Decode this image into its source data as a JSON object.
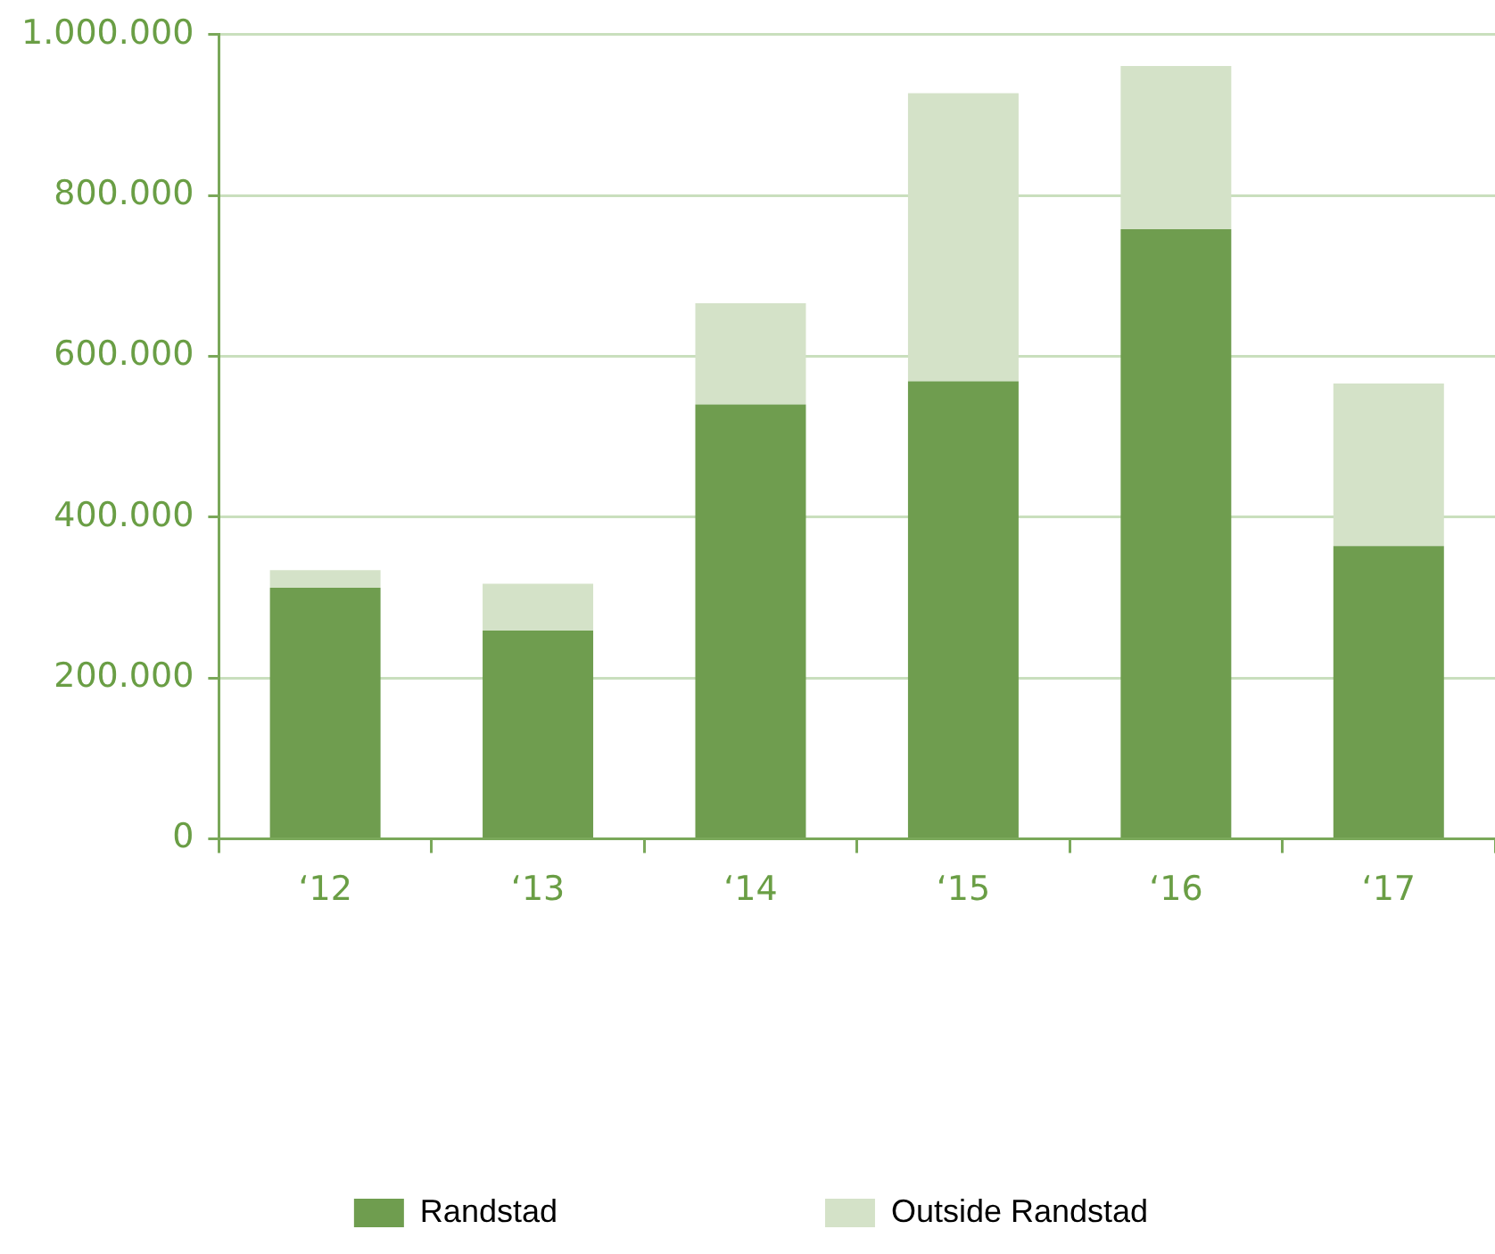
{
  "chart_data": {
    "type": "bar",
    "stacked": true,
    "categories": [
      "‘12",
      "‘13",
      "‘14",
      "‘15",
      "‘16",
      "‘17"
    ],
    "series": [
      {
        "name": "Randstad",
        "color": "#6f9d4f",
        "values": [
          312000,
          259000,
          540000,
          569000,
          758000,
          364000
        ]
      },
      {
        "name": "Outside Randstad",
        "color": "#d4e2c8",
        "values": [
          22000,
          58000,
          126000,
          358000,
          203000,
          202000
        ]
      }
    ],
    "ylim": [
      0,
      1000000
    ],
    "yticks": [
      {
        "value": 0,
        "label": "0"
      },
      {
        "value": 200000,
        "label": "200.000"
      },
      {
        "value": 400000,
        "label": "400.000"
      },
      {
        "value": 600000,
        "label": "600.000"
      },
      {
        "value": 800000,
        "label": "800.000"
      },
      {
        "value": 1000000,
        "label": "1.000.000"
      }
    ],
    "grid": "y",
    "legend": "bottom"
  }
}
